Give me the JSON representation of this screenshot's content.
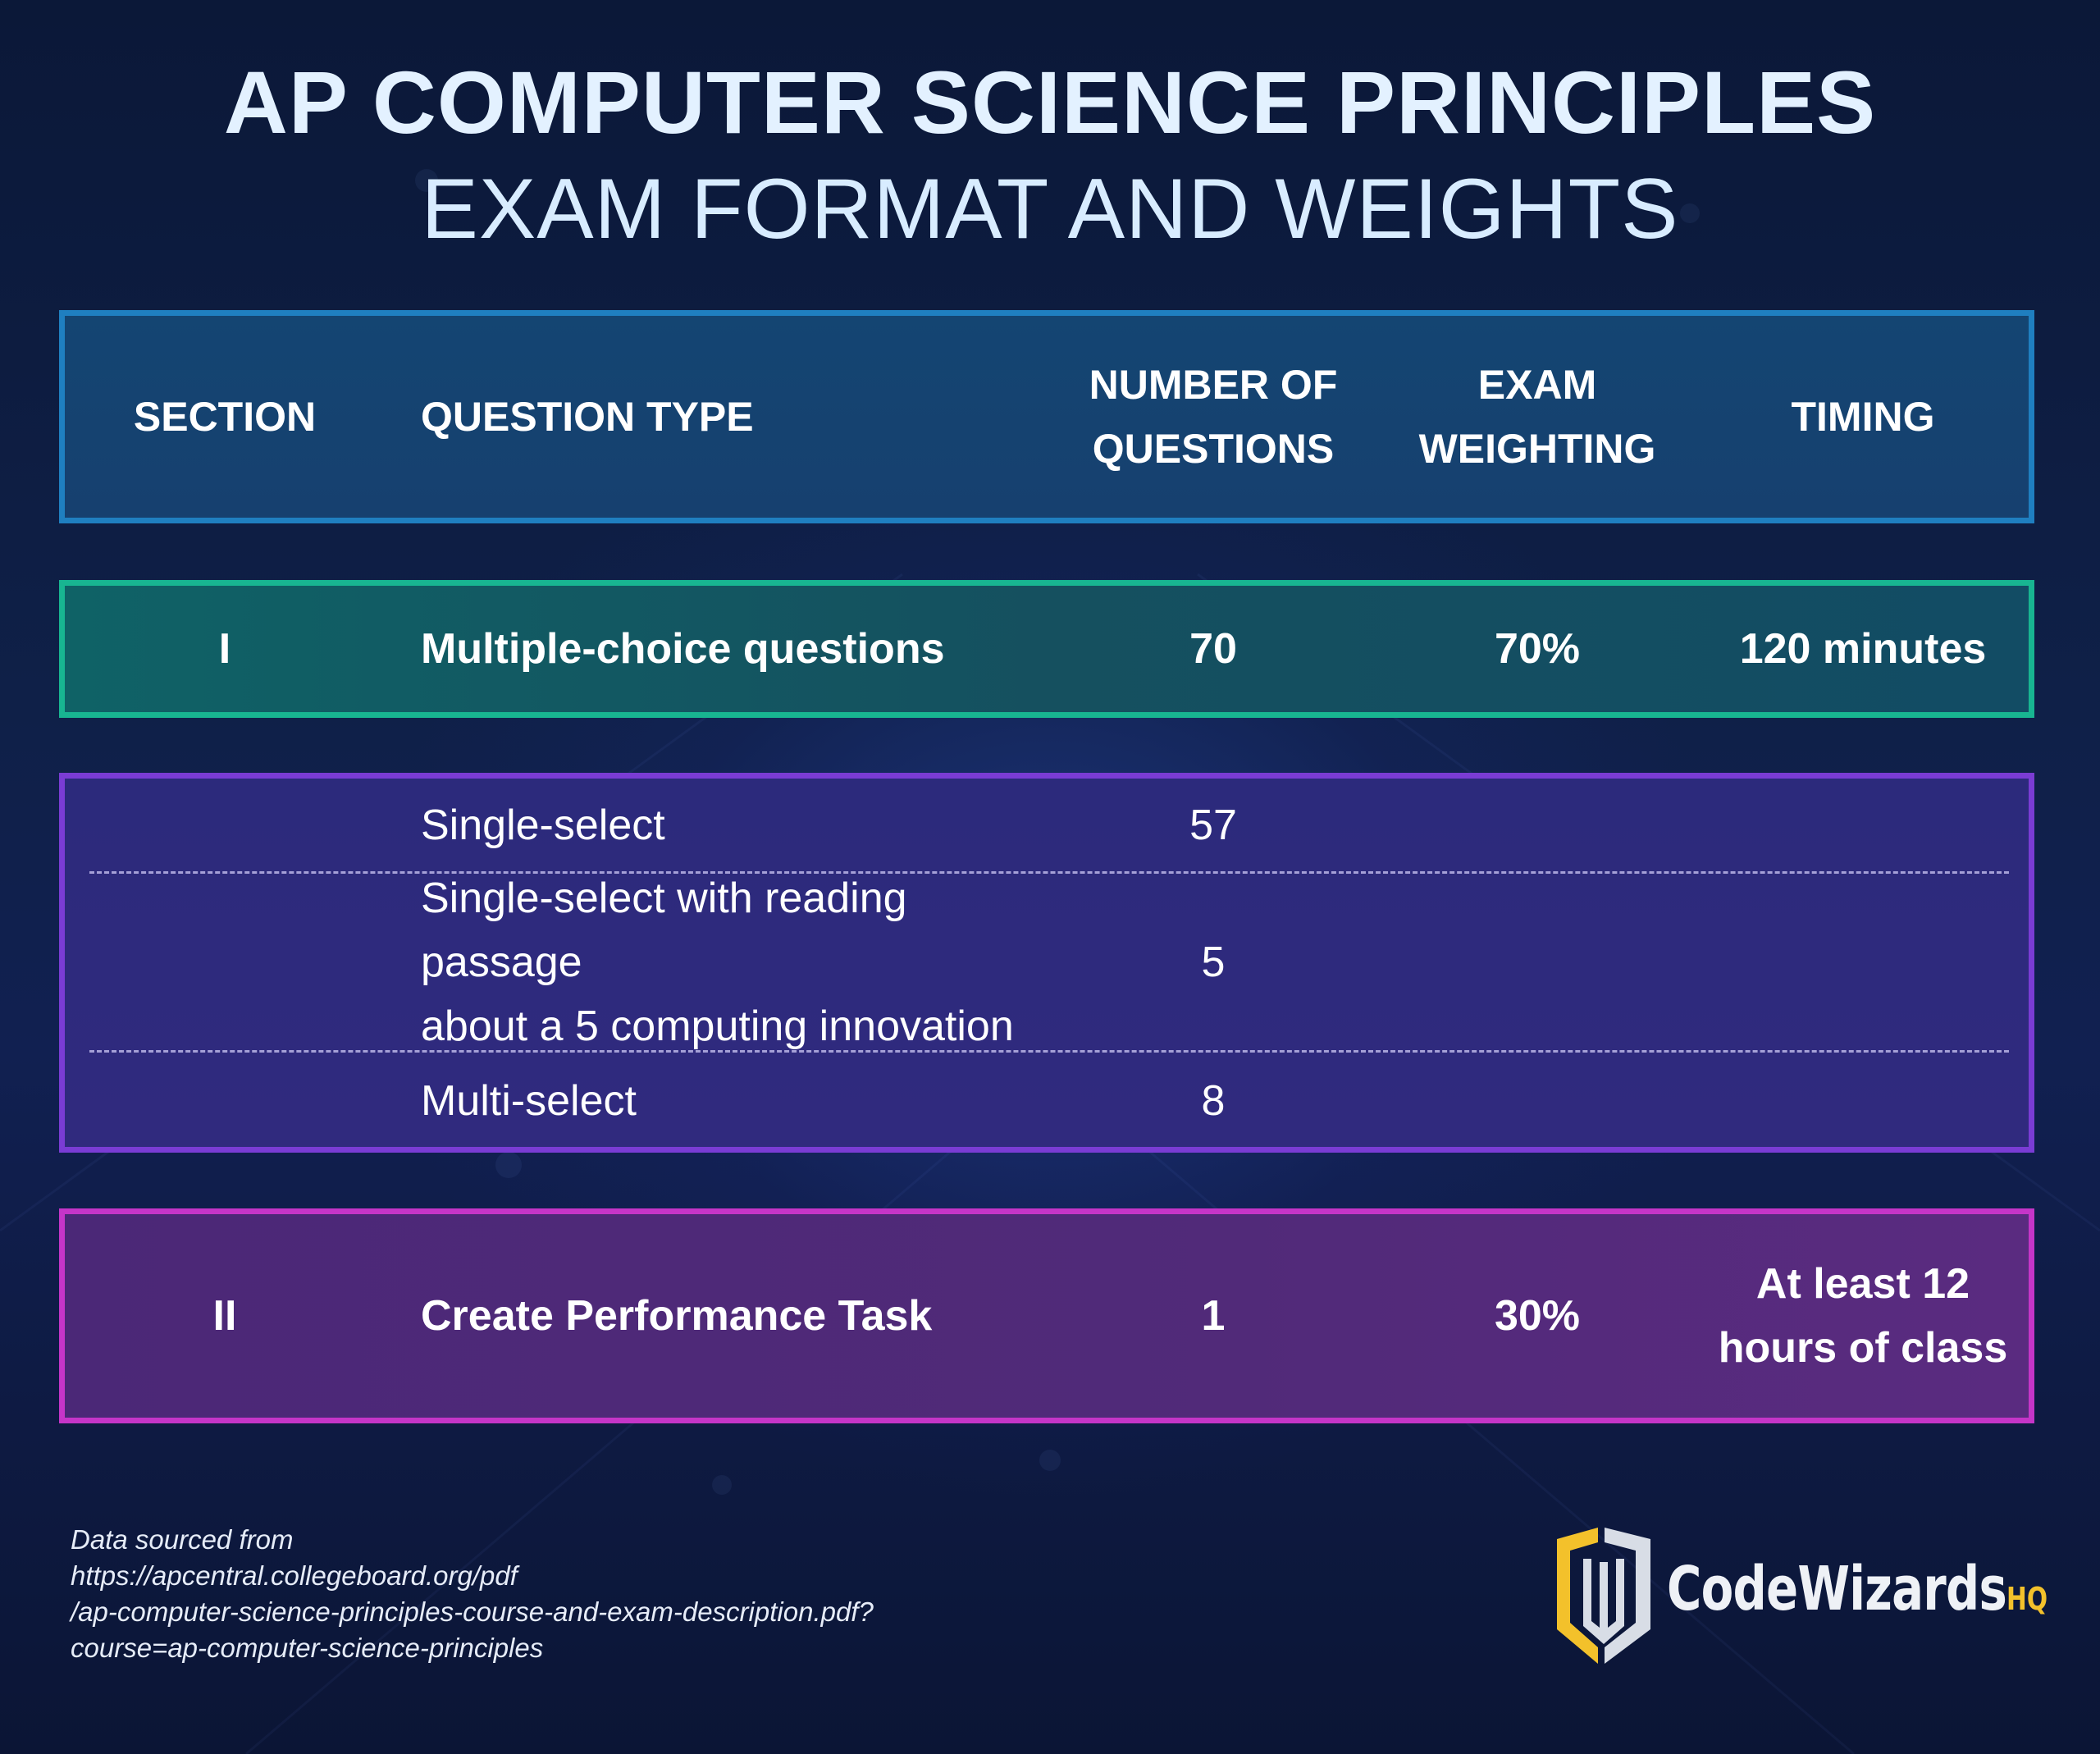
{
  "title": {
    "main": "AP COMPUTER SCIENCE PRINCIPLES",
    "sub": "EXAM FORMAT AND WEIGHTS"
  },
  "header": {
    "section": "SECTION",
    "question_type": "QUESTION TYPE",
    "number_line1": "NUMBER OF",
    "number_line2": "QUESTIONS",
    "weighting_line1": "EXAM",
    "weighting_line2": "WEIGHTING",
    "timing": "TIMING"
  },
  "section1": {
    "section": "I",
    "question_type": "Multiple-choice questions",
    "number": "70",
    "weighting": "70%",
    "timing": "120 minutes"
  },
  "subtypes": [
    {
      "question_type": "Single-select",
      "number": "57"
    },
    {
      "question_type_line1": "Single-select with reading passage",
      "question_type_line2": "about a 5 computing innovation",
      "number": "5"
    },
    {
      "question_type": "Multi-select",
      "number": "8"
    }
  ],
  "section2": {
    "section": "II",
    "question_type": "Create Performance Task",
    "number": "1",
    "weighting": "30%",
    "timing_line1": "At least 12",
    "timing_line2": "hours of class"
  },
  "source": {
    "line1": "Data sourced from",
    "line2": "https://apcentral.collegeboard.org/pdf",
    "line3": "/ap-computer-science-principles-course-and-exam-description.pdf?",
    "line4": "course=ap-computer-science-principles"
  },
  "logo": {
    "name": "CodeWizards",
    "suffix": "HQ",
    "icon": "codewizards-shield-icon"
  },
  "colors": {
    "header_border": "#1f7fc0",
    "section1_border": "#18b591",
    "subtypes_border": "#7a3cd4",
    "section2_border": "#c535c8",
    "logo_gold": "#f3c12b"
  }
}
